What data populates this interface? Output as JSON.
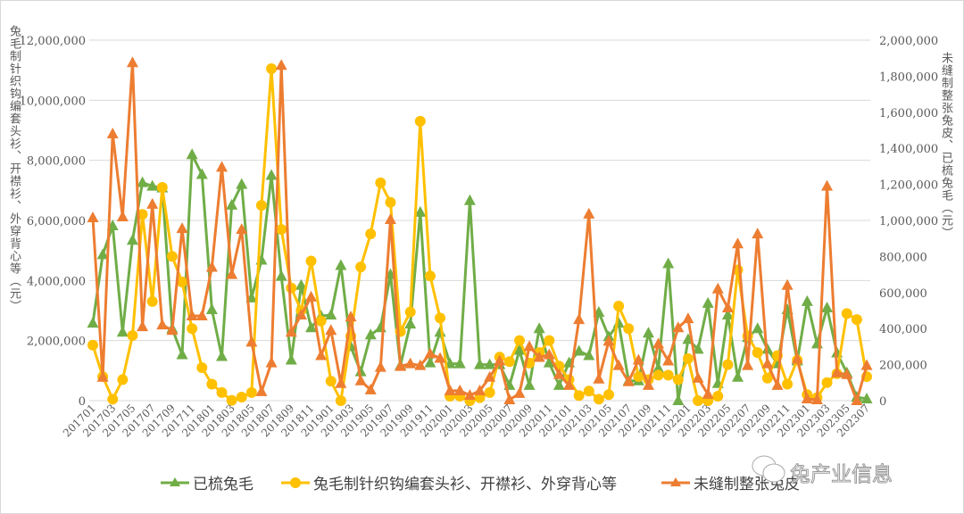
{
  "chart_data": {
    "type": "line",
    "title": "",
    "ylabel_left": "兔毛制针织钩编套头衫、开襟衫、外穿背心等（元）",
    "ylabel_right": "未缝制整张兔皮、已梳兔毛（元）",
    "ylim_left": [
      0,
      12000000
    ],
    "ylim_right": [
      0,
      2000000
    ],
    "yticks_left": [
      "0",
      "2,000,000",
      "4,000,000",
      "6,000,000",
      "8,000,000",
      "10,000,000",
      "12,000,000"
    ],
    "yticks_right": [
      "0",
      "200,000",
      "400,000",
      "600,000",
      "800,000",
      "1,000,000",
      "1,200,000",
      "1,400,000",
      "1,600,000",
      "1,800,000",
      "2,000,000"
    ],
    "grid": true,
    "legend_position": "bottom",
    "x": [
      "201701",
      "201702",
      "201703",
      "201704",
      "201705",
      "201706",
      "201707",
      "201708",
      "201709",
      "201710",
      "201711",
      "201712",
      "201801",
      "201802",
      "201803",
      "201804",
      "201805",
      "201806",
      "201807",
      "201808",
      "201809",
      "201810",
      "201811",
      "201812",
      "201901",
      "201902",
      "201903",
      "201904",
      "201905",
      "201906",
      "201907",
      "201908",
      "201909",
      "201910",
      "201911",
      "201912",
      "202001",
      "202002",
      "202003",
      "202004",
      "202005",
      "202006",
      "202007",
      "202008",
      "202009",
      "202010",
      "202011",
      "202012",
      "202101",
      "202102",
      "202103",
      "202104",
      "202105",
      "202106",
      "202107",
      "202108",
      "202109",
      "202110",
      "202111",
      "202112",
      "202201",
      "202202",
      "202203",
      "202204",
      "202205",
      "202206",
      "202207",
      "202208",
      "202209",
      "202210",
      "202211",
      "202212",
      "202301",
      "202302",
      "202303",
      "202304",
      "202305",
      "202306",
      "202307"
    ],
    "xtick_labels": [
      "201701",
      "201703",
      "201705",
      "201707",
      "201709",
      "201711",
      "201801",
      "201803",
      "201805",
      "201807",
      "201809",
      "201811",
      "201901",
      "201903",
      "201905",
      "201907",
      "201909",
      "201911",
      "202001",
      "202003",
      "202005",
      "202007",
      "202009",
      "202011",
      "202101",
      "202103",
      "202105",
      "202107",
      "202109",
      "202111",
      "202201",
      "202203",
      "202205",
      "202207",
      "202209",
      "202211",
      "202301",
      "202303",
      "202305",
      "202307"
    ],
    "series": [
      {
        "name": "已梳兔毛",
        "axis": "right",
        "color": "#70ad47",
        "marker": "triangle",
        "values": [
          430000,
          810000,
          970000,
          380000,
          890000,
          1210000,
          1190000,
          1180000,
          400000,
          255000,
          1365000,
          1255000,
          505000,
          245000,
          1085000,
          1200000,
          570000,
          780000,
          1250000,
          690000,
          225000,
          640000,
          405000,
          470000,
          475000,
          750000,
          300000,
          160000,
          365000,
          405000,
          700000,
          195000,
          425000,
          1045000,
          210000,
          380000,
          205000,
          205000,
          1110000,
          200000,
          200000,
          200000,
          85000,
          280000,
          85000,
          400000,
          210000,
          85000,
          210000,
          275000,
          250000,
          490000,
          355000,
          430000,
          110000,
          110000,
          375000,
          180000,
          760000,
          0,
          340000,
          285000,
          540000,
          95000,
          475000,
          130000,
          350000,
          400000,
          285000,
          205000,
          505000,
          220000,
          550000,
          315000,
          515000,
          265000,
          155000,
          20000,
          10000
        ]
      },
      {
        "name": "兔毛制针织钩编套头衫、开襟衫、外穿背心等",
        "axis": "left",
        "color": "#ffc000",
        "marker": "circle",
        "values": [
          1850000,
          800000,
          50000,
          700000,
          2170000,
          6200000,
          3300000,
          7100000,
          4800000,
          3950000,
          2400000,
          1100000,
          550000,
          270000,
          10000,
          120000,
          270000,
          6500000,
          11050000,
          5700000,
          3750000,
          3000000,
          4650000,
          2650000,
          650000,
          0,
          2150000,
          4450000,
          5550000,
          7250000,
          6600000,
          2300000,
          2950000,
          9300000,
          4150000,
          2750000,
          150000,
          150000,
          0,
          100000,
          270000,
          1450000,
          1300000,
          2000000,
          1250000,
          1600000,
          2000000,
          1150000,
          700000,
          170000,
          320000,
          50000,
          200000,
          3150000,
          2400000,
          800000,
          700000,
          850000,
          850000,
          700000,
          1400000,
          0,
          0,
          150000,
          1200000,
          4350000,
          2150000,
          1600000,
          750000,
          1500000,
          550000,
          1350000,
          200000,
          100000,
          600000,
          900000,
          2900000,
          2700000,
          800000
        ]
      },
      {
        "name": "未缝制整张兔皮",
        "axis": "right",
        "color": "#ed7d31",
        "marker": "triangle",
        "values": [
          1015000,
          130000,
          1480000,
          1020000,
          1875000,
          410000,
          1090000,
          420000,
          390000,
          955000,
          470000,
          470000,
          740000,
          1295000,
          700000,
          950000,
          325000,
          50000,
          210000,
          1860000,
          380000,
          475000,
          575000,
          250000,
          390000,
          95000,
          465000,
          110000,
          60000,
          185000,
          1005000,
          190000,
          205000,
          195000,
          260000,
          235000,
          55000,
          55000,
          30000,
          55000,
          130000,
          220000,
          5000,
          40000,
          300000,
          240000,
          255000,
          145000,
          85000,
          450000,
          1035000,
          120000,
          330000,
          195000,
          105000,
          225000,
          85000,
          315000,
          220000,
          405000,
          455000,
          125000,
          35000,
          620000,
          515000,
          870000,
          195000,
          925000,
          205000,
          85000,
          640000,
          230000,
          10000,
          5000,
          1190000,
          155000,
          145000,
          0,
          195000
        ]
      }
    ]
  },
  "watermark": "兔产业信息"
}
